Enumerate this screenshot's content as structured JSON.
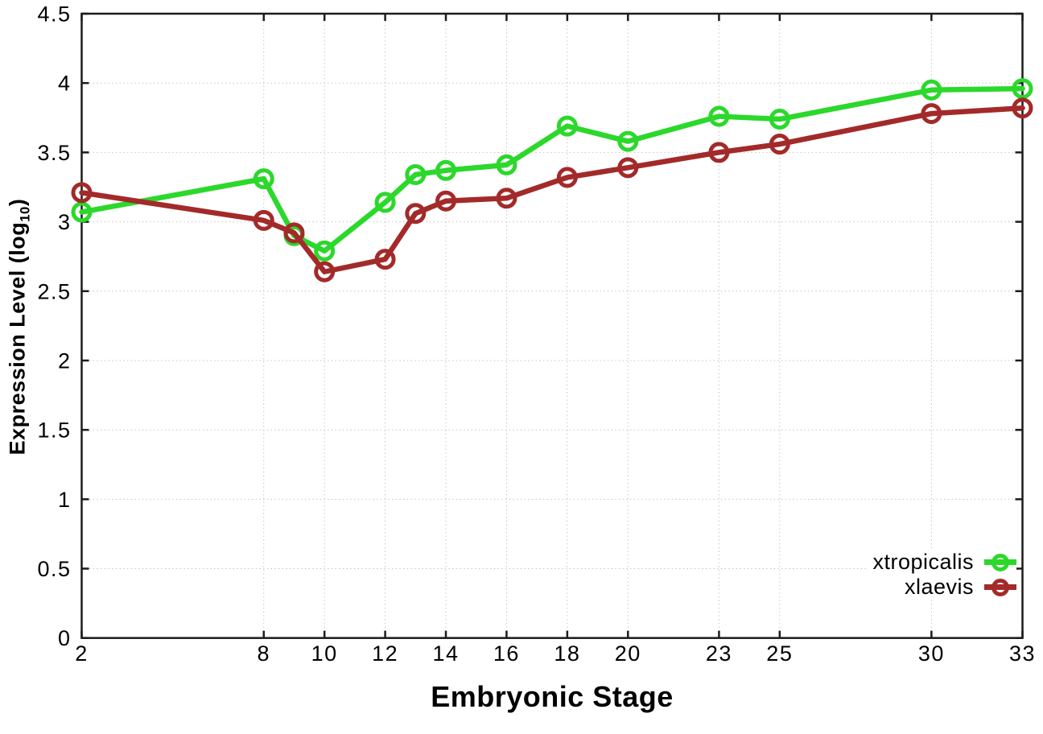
{
  "chart_data": {
    "type": "line",
    "title": "",
    "xlabel": "Embryonic Stage",
    "ylabel": "Expression Level (log10)",
    "ylabel_rich": {
      "prefix": "Expression Level (log",
      "subscript": "10",
      "suffix": ")"
    },
    "xlim": [
      2,
      33
    ],
    "ylim": [
      0,
      4.5
    ],
    "grid": true,
    "legend_position": "inside bottom-right",
    "x_ticks": [
      2,
      8,
      10,
      12,
      14,
      16,
      18,
      20,
      23,
      25,
      30,
      33
    ],
    "x_tick_labels": [
      "2",
      "8",
      "10",
      "12",
      "14",
      "16",
      "18",
      "20",
      "23",
      "25",
      "30",
      "33"
    ],
    "y_ticks": [
      0,
      0.5,
      1,
      1.5,
      2,
      2.5,
      3,
      3.5,
      4,
      4.5
    ],
    "y_tick_labels": [
      "0",
      "0.5",
      "1",
      "1.5",
      "2",
      "2.5",
      "3",
      "3.5",
      "4",
      "4.5"
    ],
    "x": [
      2,
      8,
      9,
      10,
      12,
      13,
      14,
      16,
      18,
      20,
      23,
      25,
      30,
      33
    ],
    "series": [
      {
        "name": "xtropicalis",
        "color": "#2bd82b",
        "values": [
          3.07,
          3.31,
          2.9,
          2.79,
          3.14,
          3.34,
          3.37,
          3.41,
          3.69,
          3.58,
          3.76,
          3.74,
          3.95,
          3.96
        ]
      },
      {
        "name": "xlaevis",
        "color": "#a32a2a",
        "values": [
          3.21,
          3.01,
          2.92,
          2.64,
          2.73,
          3.06,
          3.15,
          3.17,
          3.32,
          3.39,
          3.5,
          3.56,
          3.78,
          3.82
        ]
      }
    ],
    "axis_color": "#1c1c1c",
    "grid_color": "#c4c4c4",
    "background": "#ffffff"
  },
  "legend": {
    "items": [
      {
        "label": "xtropicalis",
        "color": "#2bd82b"
      },
      {
        "label": "xlaevis",
        "color": "#a32a2a"
      }
    ]
  }
}
